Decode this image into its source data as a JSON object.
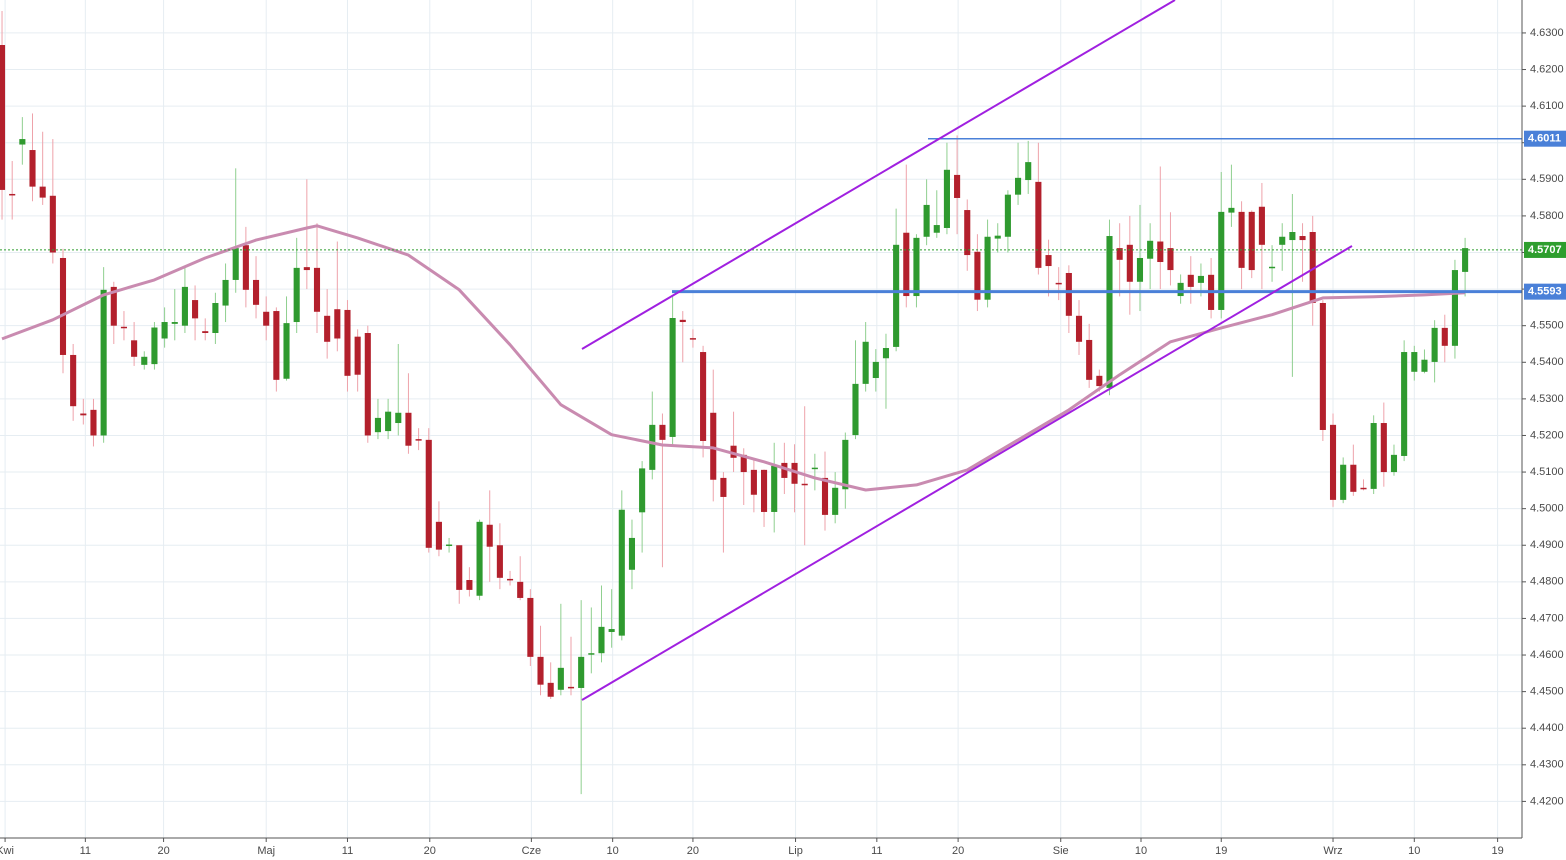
{
  "chart_data": {
    "type": "candlestick",
    "up_color": "#2f9a2f",
    "down_color": "#b3202c",
    "up_wick": "#8fcf8f",
    "down_wick": "#eea2aa",
    "open": [
      4.6267,
      4.586,
      4.5995,
      4.598,
      4.588,
      4.5855,
      4.5685,
      4.542,
      4.526,
      4.527,
      4.52,
      4.5606,
      4.5497,
      4.546,
      4.5393,
      4.5395,
      4.5465,
      4.5505,
      4.55,
      4.557,
      4.5485,
      4.548,
      4.5555,
      4.5625,
      4.572,
      4.5625,
      4.5538,
      4.554,
      4.5355,
      4.551,
      4.566,
      4.5658,
      4.5527,
      4.5545,
      4.5543,
      4.547,
      4.548,
      4.5209,
      4.5212,
      4.5234,
      4.5262,
      4.519,
      4.5188,
      4.4964,
      4.4898,
      4.49,
      4.4805,
      4.4762,
      4.4956,
      4.49,
      4.4808,
      4.48,
      4.4756,
      4.4595,
      4.4524,
      4.4505,
      4.4513,
      4.451,
      4.4603,
      4.4605,
      4.4663,
      4.4653,
      4.4833,
      4.499,
      4.5106,
      4.5229,
      4.5196,
      4.5516,
      4.5466,
      4.5428,
      4.5262,
      4.5084,
      4.5172,
      4.5147,
      4.5106,
      4.5106,
      4.4991,
      4.5125,
      4.5125,
      4.5068,
      4.511,
      4.5084,
      4.4983,
      4.5053,
      4.5201,
      4.5341,
      4.5357,
      4.5411,
      4.5442,
      4.5754,
      4.5581,
      4.5743,
      4.5754,
      4.5767,
      4.5912,
      4.5816,
      4.5702,
      4.5571,
      4.5738,
      4.5743,
      4.5858,
      4.5898,
      4.5893,
      4.5693,
      4.5617,
      4.5644,
      4.5527,
      4.5461,
      4.5363,
      4.533,
      4.5712,
      4.5721,
      4.562,
      4.5683,
      4.573,
      4.5712,
      4.5581,
      4.5639,
      4.5617,
      4.5639,
      4.5543,
      4.5809,
      4.5811,
      4.5811,
      4.5825,
      4.5658,
      4.5721,
      4.5734,
      4.5745,
      4.5756,
      4.5562,
      4.5229,
      4.5024,
      4.512,
      4.5057,
      4.5054,
      4.5234,
      4.51,
      4.5144,
      4.5374,
      4.5374,
      4.5401,
      4.5494,
      4.5445,
      4.5647
    ],
    "high": [
      4.636,
      4.595,
      4.607,
      4.608,
      4.603,
      4.601,
      4.571,
      4.545,
      4.53,
      4.53,
      4.566,
      4.562,
      4.554,
      4.551,
      4.543,
      4.551,
      4.555,
      4.56,
      4.566,
      4.561,
      4.552,
      4.559,
      4.567,
      4.593,
      4.577,
      4.569,
      4.558,
      4.555,
      4.558,
      4.574,
      4.59,
      4.578,
      4.56,
      4.573,
      4.557,
      4.549,
      4.55,
      4.53,
      4.53,
      4.545,
      4.537,
      4.522,
      4.522,
      4.502,
      4.492,
      4.49,
      4.484,
      4.497,
      4.505,
      4.496,
      4.483,
      4.487,
      4.478,
      4.468,
      4.458,
      4.474,
      4.465,
      4.475,
      4.473,
      4.479,
      4.478,
      4.505,
      4.497,
      4.513,
      4.532,
      4.526,
      4.558,
      4.554,
      4.549,
      4.5445,
      4.538,
      4.51,
      4.5265,
      4.5165,
      4.5138,
      4.5107,
      4.518,
      4.518,
      4.5176,
      4.528,
      4.515,
      4.5156,
      4.51,
      4.5208,
      4.546,
      4.551,
      4.5436,
      4.5478,
      4.582,
      4.594,
      4.575,
      4.59,
      4.587,
      4.6,
      4.602,
      4.5845,
      4.575,
      4.579,
      4.578,
      4.587,
      4.6,
      4.6005,
      4.6,
      4.5735,
      4.566,
      4.5665,
      4.557,
      4.5505,
      4.538,
      4.579,
      4.578,
      4.58,
      4.583,
      4.578,
      4.5935,
      4.581,
      4.564,
      4.569,
      4.567,
      4.5685,
      4.592,
      4.594,
      4.584,
      4.5815,
      4.589,
      4.572,
      4.578,
      4.586,
      4.578,
      4.58,
      4.557,
      4.526,
      4.514,
      4.5175,
      4.508,
      4.5255,
      4.529,
      4.5175,
      4.546,
      4.5445,
      4.5435,
      4.5515,
      4.553,
      4.568,
      4.574
    ],
    "low": [
      4.579,
      4.579,
      4.594,
      4.584,
      4.583,
      4.567,
      4.537,
      4.524,
      4.523,
      4.517,
      4.518,
      4.545,
      4.546,
      4.539,
      4.538,
      4.538,
      4.544,
      4.546,
      4.548,
      4.546,
      4.546,
      4.545,
      4.551,
      4.559,
      4.555,
      4.552,
      4.546,
      4.532,
      4.535,
      4.548,
      4.56,
      4.548,
      4.541,
      4.543,
      4.532,
      4.532,
      4.518,
      4.519,
      4.519,
      4.52,
      4.515,
      4.516,
      4.488,
      4.487,
      4.488,
      4.474,
      4.476,
      4.475,
      4.48,
      4.478,
      4.479,
      4.475,
      4.457,
      4.449,
      4.448,
      4.449,
      4.449,
      4.422,
      4.455,
      4.458,
      4.462,
      4.464,
      4.478,
      4.488,
      4.508,
      4.484,
      4.517,
      4.54,
      4.544,
      4.514,
      4.502,
      4.488,
      4.51,
      4.501,
      4.499,
      4.495,
      4.4935,
      4.504,
      4.499,
      4.49,
      4.505,
      4.494,
      4.496,
      4.5,
      4.519,
      4.532,
      4.532,
      4.5273,
      4.543,
      4.555,
      4.555,
      4.572,
      4.574,
      4.575,
      4.575,
      4.565,
      4.554,
      4.555,
      4.57,
      4.57,
      4.583,
      4.586,
      4.564,
      4.558,
      4.557,
      4.548,
      4.542,
      4.533,
      4.532,
      4.531,
      4.558,
      4.553,
      4.554,
      4.56,
      4.56,
      4.561,
      4.556,
      4.556,
      4.558,
      4.552,
      4.552,
      4.577,
      4.56,
      4.563,
      4.56,
      4.562,
      4.565,
      4.536,
      4.562,
      4.55,
      4.5185,
      4.5005,
      4.5015,
      4.5035,
      4.505,
      4.504,
      4.506,
      4.509,
      4.513,
      4.535,
      4.537,
      4.5345,
      4.54,
      4.541,
      4.558
    ],
    "close": [
      4.5871,
      4.5858,
      4.601,
      4.588,
      4.585,
      4.57,
      4.542,
      4.528,
      4.5255,
      4.52,
      4.5598,
      4.55,
      4.5495,
      4.5415,
      4.5415,
      4.5495,
      4.551,
      4.551,
      4.5606,
      4.552,
      4.548,
      4.5562,
      4.5625,
      4.5712,
      4.5598,
      4.5557,
      4.55,
      4.5352,
      4.5507,
      4.5658,
      4.5652,
      4.5538,
      4.5456,
      4.5465,
      4.5363,
      4.5366,
      4.52,
      4.5248,
      4.5265,
      4.5262,
      4.5172,
      4.5188,
      4.4893,
      4.4888,
      4.4902,
      4.4778,
      4.4778,
      4.4964,
      4.4896,
      4.4811,
      4.4805,
      4.4756,
      4.4595,
      4.4519,
      4.4486,
      4.4565,
      4.4512,
      4.4595,
      4.4605,
      4.4677,
      4.4671,
      4.4997,
      4.492,
      4.511,
      4.5229,
      4.5188,
      4.5521,
      4.551,
      4.5464,
      4.5185,
      4.5079,
      4.5032,
      4.5139,
      4.51,
      4.5038,
      4.4991,
      4.5117,
      4.5084,
      4.5068,
      4.5065,
      4.5112,
      4.4983,
      4.5057,
      4.5188,
      4.5341,
      4.5456,
      4.5401,
      4.5439,
      4.5721,
      4.5581,
      4.574,
      4.583,
      4.5775,
      4.5926,
      4.5849,
      4.5693,
      4.5571,
      4.5743,
      4.5746,
      4.5858,
      4.5904,
      4.5947,
      4.5658,
      4.5663,
      4.5615,
      4.5527,
      4.5456,
      4.5352,
      4.5335,
      4.5745,
      4.568,
      4.562,
      4.5685,
      4.5732,
      4.5674,
      4.5652,
      4.5617,
      4.5606,
      4.5636,
      4.5543,
      4.5811,
      4.5822,
      4.5658,
      4.5652,
      4.5721,
      4.5661,
      4.5743,
      4.5756,
      4.5734,
      4.5562,
      4.5215,
      4.5024,
      4.512,
      4.5046,
      4.5054,
      4.5234,
      4.51,
      4.5147,
      4.5428,
      4.5428,
      4.5407,
      4.5494,
      4.5445,
      4.5652,
      4.5712
    ],
    "moving_average": {
      "color": "#c98bb0",
      "x": [
        0,
        5,
        10,
        15,
        20,
        25,
        30,
        31,
        35,
        40,
        45,
        50,
        55,
        60,
        65,
        70,
        75,
        80,
        85,
        90,
        95,
        100,
        105,
        110,
        115,
        120,
        125,
        130,
        135,
        140,
        144
      ],
      "values": [
        4.5464,
        4.5516,
        4.5584,
        4.5625,
        4.5685,
        4.5734,
        4.5767,
        4.5773,
        4.574,
        4.5693,
        4.5598,
        4.5448,
        4.5284,
        4.5202,
        4.5174,
        4.5166,
        4.5128,
        4.5084,
        4.5051,
        4.5065,
        4.5106,
        4.5188,
        4.527,
        4.5366,
        4.5456,
        4.5494,
        4.553,
        4.5576,
        4.5579,
        4.5584,
        4.559
      ]
    },
    "price_markers": [
      {
        "value": 4.6011,
        "color": "#4a80d8"
      },
      {
        "value": 4.5707,
        "color": "#2e9e2e"
      },
      {
        "value": 4.5593,
        "color": "#4a80d8"
      }
    ],
    "xlim": [
      -0.2,
      149.6
    ],
    "xticks": [
      {
        "value": 0.3,
        "label": "Kwi"
      },
      {
        "value": 8.2,
        "label": "11"
      },
      {
        "value": 15.9,
        "label": "20"
      },
      {
        "value": 26,
        "label": "Maj"
      },
      {
        "value": 34,
        "label": "11"
      },
      {
        "value": 42.1,
        "label": "20"
      },
      {
        "value": 52.1,
        "label": "Cze"
      },
      {
        "value": 60.1,
        "label": "10"
      },
      {
        "value": 68,
        "label": "20"
      },
      {
        "value": 78.1,
        "label": "Lip"
      },
      {
        "value": 86.1,
        "label": "11"
      },
      {
        "value": 94.1,
        "label": "20"
      },
      {
        "value": 104.2,
        "label": "Sie"
      },
      {
        "value": 112.1,
        "label": "10"
      },
      {
        "value": 120,
        "label": "19"
      },
      {
        "value": 131,
        "label": "Wrz"
      },
      {
        "value": 139,
        "label": "10"
      },
      {
        "value": 147.2,
        "label": "19"
      }
    ],
    "ylim": [
      4.41,
      4.639
    ],
    "yticks": [
      {
        "value": 4.42,
        "label": "4.4200"
      },
      {
        "value": 4.43,
        "label": "4.4300"
      },
      {
        "value": 4.44,
        "label": "4.4400"
      },
      {
        "value": 4.45,
        "label": "4.4500"
      },
      {
        "value": 4.46,
        "label": "4.4600"
      },
      {
        "value": 4.47,
        "label": "4.4700"
      },
      {
        "value": 4.48,
        "label": "4.4800"
      },
      {
        "value": 4.49,
        "label": "4.4900"
      },
      {
        "value": 4.5,
        "label": "4.5000"
      },
      {
        "value": 4.51,
        "label": "4.5100"
      },
      {
        "value": 4.52,
        "label": "4.5200"
      },
      {
        "value": 4.53,
        "label": "4.5300"
      },
      {
        "value": 4.54,
        "label": "4.5400"
      },
      {
        "value": 4.55,
        "label": "4.5500"
      },
      {
        "value": 4.56,
        "label": "4.5600"
      },
      {
        "value": 4.57,
        "label": "4.5700"
      },
      {
        "value": 4.58,
        "label": "4.5800"
      },
      {
        "value": 4.59,
        "label": "4.5900"
      },
      {
        "value": 4.6,
        "label": "4.6000"
      },
      {
        "value": 4.61,
        "label": "4.6100"
      },
      {
        "value": 4.62,
        "label": "4.6200"
      },
      {
        "value": 4.63,
        "label": "4.6300"
      }
    ],
    "grid": true
  }
}
